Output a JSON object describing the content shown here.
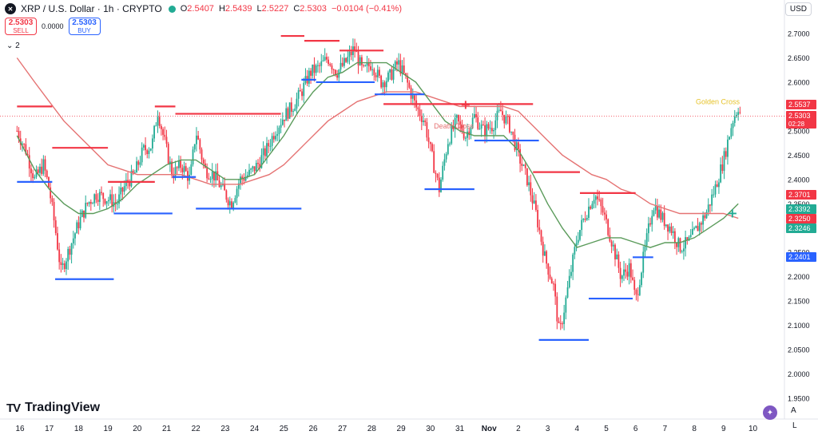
{
  "header": {
    "symbol": "XRP / U.S. Dollar · 1h · CRYPTO",
    "icon": "xrp-logo-icon",
    "o_label": "O",
    "o_value": "2.5407",
    "h_label": "H",
    "h_value": "2.5439",
    "l_label": "L",
    "l_value": "2.5227",
    "c_label": "C",
    "c_value": "2.5303",
    "change": "−0.0104 (−0.41%)"
  },
  "trade": {
    "sell_price": "2.5303",
    "sell_label": "SELL",
    "spread": "0.0000",
    "buy_price": "2.5303",
    "buy_label": "BUY"
  },
  "indicators_toggle": "2",
  "currency": "USD",
  "brand": "TradingView",
  "corner": {
    "auto": "A",
    "log": "L"
  },
  "colors": {
    "up": "#22ab94",
    "down": "#f23645",
    "ma_fast": "#5b9b5b",
    "ma_slow": "#e57373",
    "support": "#2962ff",
    "resistance": "#f23645"
  },
  "chart_data": {
    "type": "candlestick",
    "title": "XRP / U.S. Dollar · 1h · CRYPTO",
    "ylim": [
      1.92,
      2.73
    ],
    "x_ticks": [
      "16",
      "17",
      "18",
      "19",
      "20",
      "21",
      "22",
      "23",
      "24",
      "25",
      "26",
      "27",
      "28",
      "29",
      "30",
      "31",
      "Nov",
      "2",
      "3",
      "4",
      "5",
      "6",
      "7",
      "8",
      "9",
      "10"
    ],
    "y_ticks": [
      "2.7000",
      "2.6500",
      "2.6000",
      "2.5500",
      "2.5000",
      "2.4500",
      "2.4000",
      "2.3500",
      "2.3000",
      "2.2500",
      "2.2000",
      "2.1500",
      "2.1000",
      "2.0500",
      "2.0000",
      "1.9500"
    ],
    "price_series": [
      [
        15.9,
        2.5
      ],
      [
        16.2,
        2.46
      ],
      [
        16.5,
        2.4
      ],
      [
        16.8,
        2.43
      ],
      [
        17.0,
        2.38
      ],
      [
        17.2,
        2.3
      ],
      [
        17.4,
        2.21
      ],
      [
        17.7,
        2.26
      ],
      [
        18.0,
        2.31
      ],
      [
        18.3,
        2.35
      ],
      [
        18.6,
        2.37
      ],
      [
        19.0,
        2.36
      ],
      [
        19.3,
        2.35
      ],
      [
        19.6,
        2.39
      ],
      [
        19.9,
        2.41
      ],
      [
        20.2,
        2.46
      ],
      [
        20.5,
        2.47
      ],
      [
        20.7,
        2.54
      ],
      [
        21.0,
        2.46
      ],
      [
        21.2,
        2.41
      ],
      [
        21.5,
        2.43
      ],
      [
        21.8,
        2.4
      ],
      [
        22.0,
        2.5
      ],
      [
        22.3,
        2.42
      ],
      [
        22.6,
        2.41
      ],
      [
        22.9,
        2.38
      ],
      [
        23.2,
        2.35
      ],
      [
        23.5,
        2.4
      ],
      [
        23.8,
        2.41
      ],
      [
        24.1,
        2.43
      ],
      [
        24.4,
        2.46
      ],
      [
        24.7,
        2.5
      ],
      [
        25.0,
        2.53
      ],
      [
        25.3,
        2.55
      ],
      [
        25.6,
        2.58
      ],
      [
        25.9,
        2.62
      ],
      [
        26.2,
        2.63
      ],
      [
        26.5,
        2.65
      ],
      [
        26.8,
        2.62
      ],
      [
        27.1,
        2.64
      ],
      [
        27.4,
        2.67
      ],
      [
        27.7,
        2.62
      ],
      [
        28.0,
        2.64
      ],
      [
        28.3,
        2.6
      ],
      [
        28.6,
        2.61
      ],
      [
        28.9,
        2.64
      ],
      [
        29.2,
        2.6
      ],
      [
        29.5,
        2.55
      ],
      [
        29.8,
        2.52
      ],
      [
        30.0,
        2.46
      ],
      [
        30.3,
        2.38
      ],
      [
        30.6,
        2.48
      ],
      [
        30.9,
        2.52
      ],
      [
        31.2,
        2.49
      ],
      [
        31.5,
        2.53
      ],
      [
        31.8,
        2.5
      ],
      [
        32.1,
        2.51
      ],
      [
        32.4,
        2.54
      ],
      [
        32.7,
        2.51
      ],
      [
        33.0,
        2.45
      ],
      [
        33.3,
        2.4
      ],
      [
        33.6,
        2.33
      ],
      [
        33.9,
        2.24
      ],
      [
        34.2,
        2.18
      ],
      [
        34.4,
        2.08
      ],
      [
        34.7,
        2.18
      ],
      [
        35.0,
        2.28
      ],
      [
        35.3,
        2.33
      ],
      [
        35.6,
        2.37
      ],
      [
        35.9,
        2.33
      ],
      [
        36.2,
        2.27
      ],
      [
        36.5,
        2.2
      ],
      [
        36.8,
        2.22
      ],
      [
        37.0,
        2.15
      ],
      [
        37.3,
        2.25
      ],
      [
        37.6,
        2.35
      ],
      [
        37.9,
        2.32
      ],
      [
        38.2,
        2.3
      ],
      [
        38.5,
        2.26
      ],
      [
        38.8,
        2.27
      ],
      [
        39.1,
        2.3
      ],
      [
        39.4,
        2.33
      ],
      [
        39.7,
        2.38
      ],
      [
        40.0,
        2.44
      ],
      [
        40.3,
        2.52
      ],
      [
        40.5,
        2.55
      ],
      [
        40.6,
        2.53
      ]
    ],
    "ma_fast_series": [
      [
        15.9,
        2.49
      ],
      [
        16.5,
        2.42
      ],
      [
        17.0,
        2.38
      ],
      [
        17.5,
        2.35
      ],
      [
        18.0,
        2.33
      ],
      [
        18.5,
        2.33
      ],
      [
        19.0,
        2.34
      ],
      [
        19.5,
        2.36
      ],
      [
        20.0,
        2.39
      ],
      [
        20.5,
        2.41
      ],
      [
        21.0,
        2.43
      ],
      [
        21.5,
        2.44
      ],
      [
        22.0,
        2.44
      ],
      [
        22.5,
        2.42
      ],
      [
        23.0,
        2.4
      ],
      [
        23.5,
        2.4
      ],
      [
        24.0,
        2.41
      ],
      [
        24.5,
        2.45
      ],
      [
        25.0,
        2.49
      ],
      [
        25.5,
        2.54
      ],
      [
        26.0,
        2.58
      ],
      [
        26.5,
        2.61
      ],
      [
        27.0,
        2.62
      ],
      [
        27.5,
        2.64
      ],
      [
        28.0,
        2.64
      ],
      [
        28.5,
        2.64
      ],
      [
        29.0,
        2.62
      ],
      [
        29.5,
        2.6
      ],
      [
        30.0,
        2.56
      ],
      [
        30.5,
        2.52
      ],
      [
        31.0,
        2.5
      ],
      [
        31.5,
        2.49
      ],
      [
        32.0,
        2.49
      ],
      [
        32.5,
        2.49
      ],
      [
        33.0,
        2.46
      ],
      [
        33.5,
        2.41
      ],
      [
        34.0,
        2.35
      ],
      [
        34.5,
        2.3
      ],
      [
        35.0,
        2.26
      ],
      [
        35.5,
        2.27
      ],
      [
        36.0,
        2.28
      ],
      [
        36.5,
        2.28
      ],
      [
        37.0,
        2.27
      ],
      [
        37.5,
        2.26
      ],
      [
        38.0,
        2.27
      ],
      [
        38.5,
        2.27
      ],
      [
        39.0,
        2.28
      ],
      [
        39.5,
        2.3
      ],
      [
        40.0,
        2.32
      ],
      [
        40.5,
        2.35
      ]
    ],
    "ma_slow_series": [
      [
        15.9,
        2.65
      ],
      [
        16.5,
        2.6
      ],
      [
        17.0,
        2.56
      ],
      [
        17.5,
        2.52
      ],
      [
        18.0,
        2.49
      ],
      [
        18.5,
        2.46
      ],
      [
        19.0,
        2.43
      ],
      [
        19.5,
        2.42
      ],
      [
        20.0,
        2.41
      ],
      [
        20.5,
        2.41
      ],
      [
        21.0,
        2.41
      ],
      [
        21.5,
        2.41
      ],
      [
        22.0,
        2.4
      ],
      [
        22.5,
        2.39
      ],
      [
        23.0,
        2.39
      ],
      [
        23.5,
        2.39
      ],
      [
        24.0,
        2.4
      ],
      [
        24.5,
        2.41
      ],
      [
        25.0,
        2.43
      ],
      [
        25.5,
        2.46
      ],
      [
        26.0,
        2.49
      ],
      [
        26.5,
        2.52
      ],
      [
        27.0,
        2.54
      ],
      [
        27.5,
        2.56
      ],
      [
        28.0,
        2.57
      ],
      [
        28.5,
        2.58
      ],
      [
        29.0,
        2.58
      ],
      [
        29.5,
        2.58
      ],
      [
        30.0,
        2.57
      ],
      [
        30.5,
        2.56
      ],
      [
        31.0,
        2.55
      ],
      [
        31.5,
        2.55
      ],
      [
        32.0,
        2.55
      ],
      [
        32.5,
        2.55
      ],
      [
        33.0,
        2.54
      ],
      [
        33.5,
        2.51
      ],
      [
        34.0,
        2.48
      ],
      [
        34.5,
        2.45
      ],
      [
        35.0,
        2.43
      ],
      [
        35.5,
        2.41
      ],
      [
        36.0,
        2.4
      ],
      [
        36.5,
        2.38
      ],
      [
        37.0,
        2.37
      ],
      [
        37.5,
        2.35
      ],
      [
        38.0,
        2.34
      ],
      [
        38.5,
        2.33
      ],
      [
        39.0,
        2.33
      ],
      [
        39.5,
        2.33
      ],
      [
        40.0,
        2.33
      ],
      [
        40.5,
        2.32
      ]
    ],
    "resistance_levels": [
      {
        "x0": 15.9,
        "x1": 17.1,
        "y": 2.55
      },
      {
        "x0": 17.1,
        "x1": 19.0,
        "y": 2.465
      },
      {
        "x0": 19.0,
        "x1": 20.6,
        "y": 2.395
      },
      {
        "x0": 20.6,
        "x1": 21.3,
        "y": 2.55
      },
      {
        "x0": 21.3,
        "x1": 24.9,
        "y": 2.535
      },
      {
        "x0": 24.9,
        "x1": 25.7,
        "y": 2.695
      },
      {
        "x0": 25.7,
        "x1": 26.9,
        "y": 2.685
      },
      {
        "x0": 26.9,
        "x1": 28.4,
        "y": 2.665
      },
      {
        "x0": 28.4,
        "x1": 33.5,
        "y": 2.555
      },
      {
        "x0": 33.5,
        "x1": 35.1,
        "y": 2.415
      },
      {
        "x0": 35.1,
        "x1": 37.0,
        "y": 2.372
      }
    ],
    "support_levels": [
      {
        "x0": 15.9,
        "x1": 17.1,
        "y": 2.395
      },
      {
        "x0": 17.2,
        "x1": 19.2,
        "y": 2.195
      },
      {
        "x0": 19.2,
        "x1": 21.2,
        "y": 2.33
      },
      {
        "x0": 21.2,
        "x1": 22.0,
        "y": 2.405
      },
      {
        "x0": 22.0,
        "x1": 25.6,
        "y": 2.34
      },
      {
        "x0": 25.6,
        "x1": 26.1,
        "y": 2.605
      },
      {
        "x0": 26.1,
        "x1": 28.1,
        "y": 2.6
      },
      {
        "x0": 28.1,
        "x1": 29.8,
        "y": 2.575
      },
      {
        "x0": 29.8,
        "x1": 31.5,
        "y": 2.38
      },
      {
        "x0": 31.5,
        "x1": 33.7,
        "y": 2.48
      },
      {
        "x0": 33.7,
        "x1": 35.4,
        "y": 2.07
      },
      {
        "x0": 35.4,
        "x1": 36.9,
        "y": 2.155
      },
      {
        "x0": 36.9,
        "x1": 37.6,
        "y": 2.24
      }
    ],
    "annotations": [
      {
        "text": "Death Cross",
        "x": 30.8,
        "y": 2.505
      },
      {
        "text": "Golden Cross",
        "x": 39.8,
        "y": 2.555
      }
    ],
    "price_labels": [
      {
        "value": "2.5537",
        "color": "#f23645"
      },
      {
        "value": "2.5303",
        "sub": "02:28",
        "color": "#f23645"
      },
      {
        "value": "2.3701",
        "color": "#f23645"
      },
      {
        "value": "2.3392",
        "color": "#22ab94"
      },
      {
        "value": "2.3250",
        "color": "#f23645"
      },
      {
        "value": "2.3246",
        "color": "#22ab94"
      },
      {
        "value": "2.2401",
        "color": "#2962ff"
      }
    ],
    "grid": false,
    "legend_position": "top-left"
  }
}
